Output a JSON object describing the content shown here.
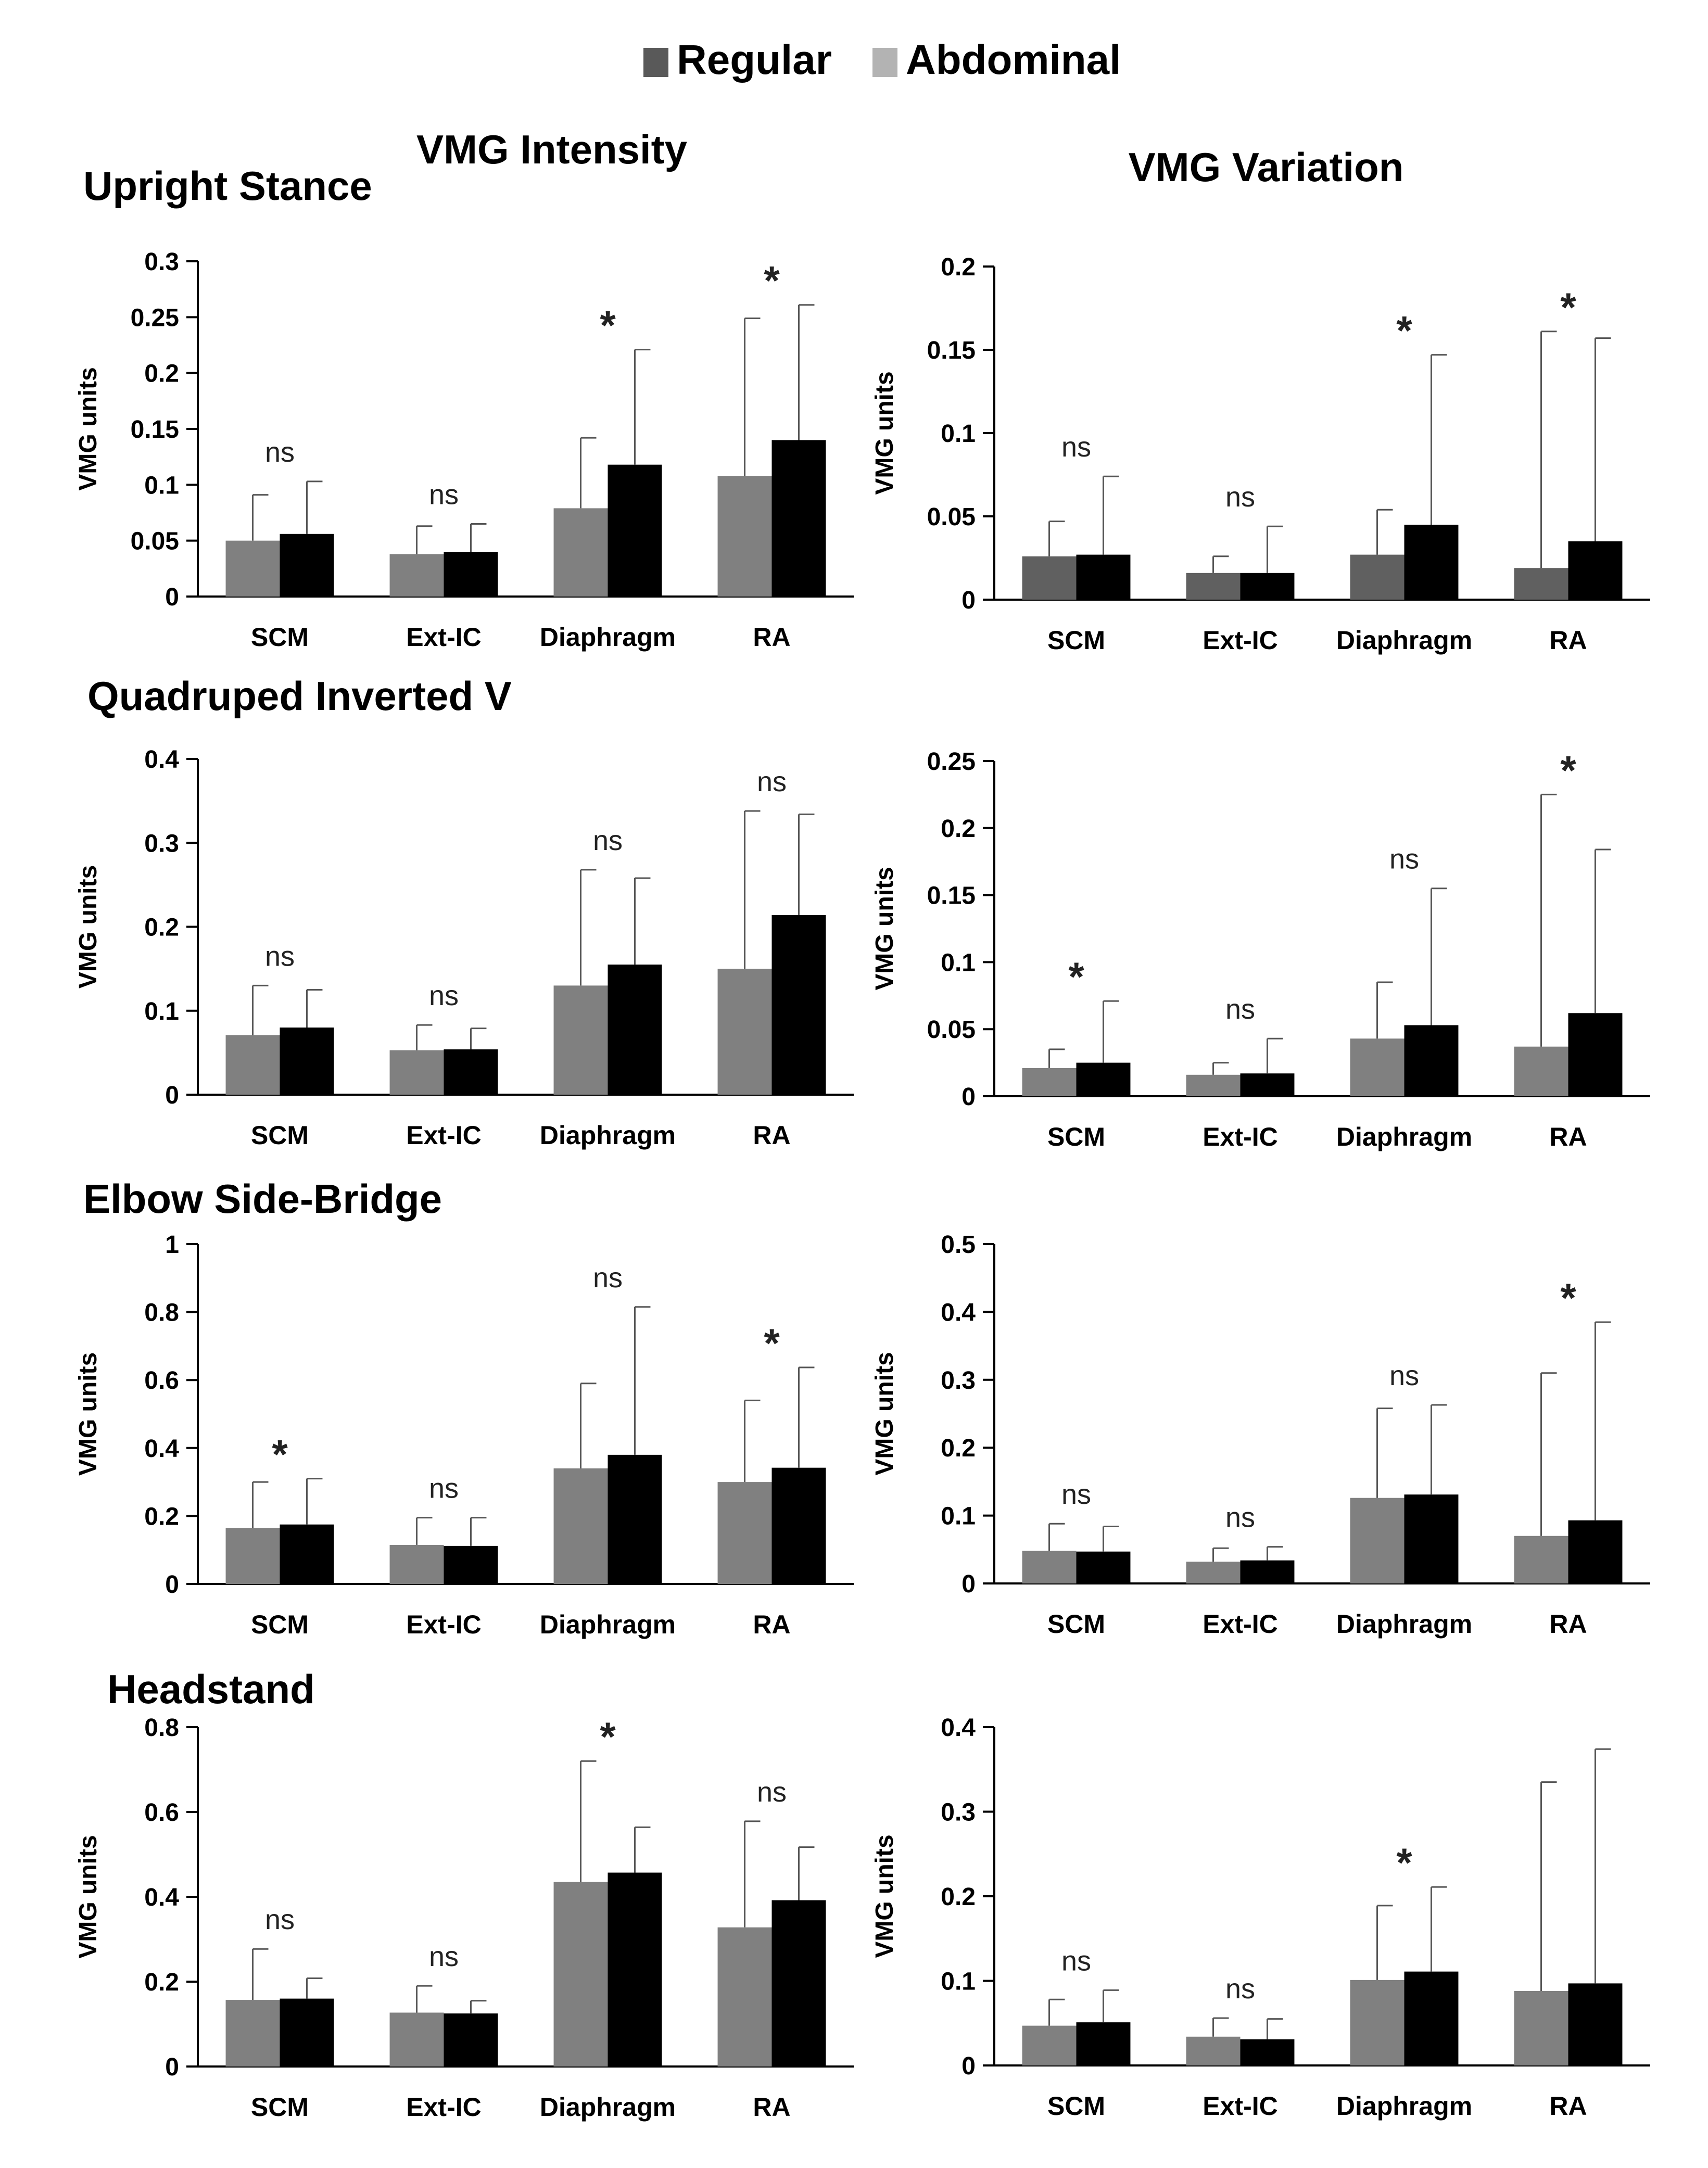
{
  "legend": {
    "items": [
      {
        "label": "Regular",
        "color": "#595959"
      },
      {
        "label": "Abdominal",
        "color": "#b3b3b3"
      }
    ]
  },
  "column_titles": {
    "intensity": "VMG Intensity",
    "variation": "VMG Variation"
  },
  "row_titles": [
    "Upright Stance",
    "Quadruped Inverted V",
    "Elbow Side-Bridge",
    "Headstand"
  ],
  "colors": {
    "first_bar": "#808080",
    "first_bar_dark": "#606060",
    "second_bar": "#000000",
    "axis": "#000000"
  },
  "chart_data": [
    {
      "id": "upright-intensity",
      "type": "bar",
      "title": "Upright Stance",
      "column": "VMG Intensity",
      "ylabel": "VMG units",
      "ylim": [
        0,
        0.3
      ],
      "yticks": [
        "0",
        "0.05",
        "0.1",
        "0.15",
        "0.2",
        "0.25",
        "0.3"
      ],
      "categories": [
        "SCM",
        "Ext-IC",
        "Diaphragm",
        "RA"
      ],
      "series": [
        {
          "name": "Regular",
          "values": [
            0.05,
            0.038,
            0.079,
            0.108
          ],
          "errors": [
            0.041,
            0.025,
            0.063,
            0.141
          ]
        },
        {
          "name": "Abdominal",
          "values": [
            0.056,
            0.04,
            0.118,
            0.14
          ],
          "errors": [
            0.047,
            0.025,
            0.103,
            0.121
          ]
        }
      ],
      "annotations": [
        "ns",
        "ns",
        "*",
        "*"
      ]
    },
    {
      "id": "upright-variation",
      "type": "bar",
      "title": "Upright Stance",
      "column": "VMG Variation",
      "ylabel": "VMG units",
      "ylim": [
        0,
        0.2
      ],
      "yticks": [
        "0",
        "0.05",
        "0.1",
        "0.15",
        "0.2"
      ],
      "categories": [
        "SCM",
        "Ext-IC",
        "Diaphragm",
        "RA"
      ],
      "series": [
        {
          "name": "Regular",
          "values": [
            0.026,
            0.016,
            0.027,
            0.019
          ],
          "errors": [
            0.021,
            0.01,
            0.027,
            0.142
          ]
        },
        {
          "name": "Abdominal",
          "values": [
            0.027,
            0.016,
            0.045,
            0.035
          ],
          "errors": [
            0.047,
            0.028,
            0.102,
            0.122
          ]
        }
      ],
      "annotations": [
        "ns",
        "ns",
        "*",
        "*"
      ]
    },
    {
      "id": "quadruped-intensity",
      "type": "bar",
      "title": "Quadruped Inverted V",
      "column": "VMG Intensity",
      "ylabel": "VMG units",
      "ylim": [
        0,
        0.4
      ],
      "yticks": [
        "0",
        "0.1",
        "0.2",
        "0.3",
        "0.4"
      ],
      "categories": [
        "SCM",
        "Ext-IC",
        "Diaphragm",
        "RA"
      ],
      "series": [
        {
          "name": "Regular",
          "values": [
            0.071,
            0.053,
            0.13,
            0.15
          ],
          "errors": [
            0.059,
            0.03,
            0.138,
            0.188
          ]
        },
        {
          "name": "Abdominal",
          "values": [
            0.08,
            0.054,
            0.155,
            0.214
          ],
          "errors": [
            0.045,
            0.025,
            0.103,
            0.12
          ]
        }
      ],
      "annotations": [
        "ns",
        "ns",
        "ns",
        "ns"
      ]
    },
    {
      "id": "quadruped-variation",
      "type": "bar",
      "title": "Quadruped Inverted V",
      "column": "VMG Variation",
      "ylabel": "VMG units",
      "ylim": [
        0,
        0.25
      ],
      "yticks": [
        "0",
        "0.05",
        "0.1",
        "0.15",
        "0.2",
        "0.25"
      ],
      "categories": [
        "SCM",
        "Ext-IC",
        "Diaphragm",
        "RA"
      ],
      "series": [
        {
          "name": "Regular",
          "values": [
            0.021,
            0.016,
            0.043,
            0.037
          ],
          "errors": [
            0.014,
            0.009,
            0.042,
            0.188
          ]
        },
        {
          "name": "Abdominal",
          "values": [
            0.025,
            0.017,
            0.053,
            0.062
          ],
          "errors": [
            0.046,
            0.026,
            0.102,
            0.122
          ]
        }
      ],
      "annotations": [
        "*",
        "ns",
        "ns",
        "*"
      ]
    },
    {
      "id": "sidebridge-intensity",
      "type": "bar",
      "title": "Elbow Side-Bridge",
      "column": "VMG Intensity",
      "ylabel": "VMG units",
      "ylim": [
        0,
        1
      ],
      "yticks": [
        "0",
        "0.2",
        "0.4",
        "0.6",
        "0.8",
        "1"
      ],
      "categories": [
        "SCM",
        "Ext-IC",
        "Diaphragm",
        "RA"
      ],
      "series": [
        {
          "name": "Regular",
          "values": [
            0.165,
            0.115,
            0.34,
            0.3
          ],
          "errors": [
            0.135,
            0.08,
            0.25,
            0.24
          ]
        },
        {
          "name": "Abdominal",
          "values": [
            0.175,
            0.112,
            0.38,
            0.342
          ],
          "errors": [
            0.135,
            0.083,
            0.435,
            0.295
          ]
        }
      ],
      "annotations": [
        "*",
        "ns",
        "ns",
        "*"
      ]
    },
    {
      "id": "sidebridge-variation",
      "type": "bar",
      "title": "Elbow Side-Bridge",
      "column": "VMG Variation",
      "ylabel": "VMG units",
      "ylim": [
        0,
        0.5
      ],
      "yticks": [
        "0",
        "0.1",
        "0.2",
        "0.3",
        "0.4",
        "0.5"
      ],
      "categories": [
        "SCM",
        "Ext-IC",
        "Diaphragm",
        "RA"
      ],
      "series": [
        {
          "name": "Regular",
          "values": [
            0.048,
            0.032,
            0.126,
            0.07
          ],
          "errors": [
            0.04,
            0.02,
            0.132,
            0.24
          ]
        },
        {
          "name": "Abdominal",
          "values": [
            0.047,
            0.034,
            0.131,
            0.093
          ],
          "errors": [
            0.037,
            0.02,
            0.132,
            0.292
          ]
        }
      ],
      "annotations": [
        "ns",
        "ns",
        "ns",
        "*"
      ]
    },
    {
      "id": "headstand-intensity",
      "type": "bar",
      "title": "Headstand",
      "column": "VMG Intensity",
      "ylabel": "VMG units",
      "ylim": [
        0,
        0.8
      ],
      "yticks": [
        "0",
        "0.2",
        "0.4",
        "0.6",
        "0.8"
      ],
      "categories": [
        "SCM",
        "Ext-IC",
        "Diaphragm",
        "RA"
      ],
      "series": [
        {
          "name": "Regular",
          "values": [
            0.157,
            0.127,
            0.435,
            0.328
          ],
          "errors": [
            0.12,
            0.063,
            0.285,
            0.25
          ]
        },
        {
          "name": "Abdominal",
          "values": [
            0.16,
            0.125,
            0.457,
            0.392
          ],
          "errors": [
            0.048,
            0.03,
            0.107,
            0.125
          ]
        }
      ],
      "annotations": [
        "ns",
        "ns",
        "*",
        "ns"
      ]
    },
    {
      "id": "headstand-variation",
      "type": "bar",
      "title": "Headstand",
      "column": "VMG Variation",
      "ylabel": "VMG units",
      "ylim": [
        0,
        0.4
      ],
      "yticks": [
        "0",
        "0.1",
        "0.2",
        "0.3",
        "0.4"
      ],
      "categories": [
        "SCM",
        "Ext-IC",
        "Diaphragm",
        "RA"
      ],
      "series": [
        {
          "name": "Regular",
          "values": [
            0.047,
            0.034,
            0.101,
            0.088
          ],
          "errors": [
            0.031,
            0.022,
            0.088,
            0.247
          ]
        },
        {
          "name": "Abdominal",
          "values": [
            0.051,
            0.031,
            0.111,
            0.097
          ],
          "errors": [
            0.038,
            0.024,
            0.1,
            0.277
          ]
        }
      ],
      "annotations": [
        "ns",
        "ns",
        "*",
        ""
      ]
    }
  ]
}
